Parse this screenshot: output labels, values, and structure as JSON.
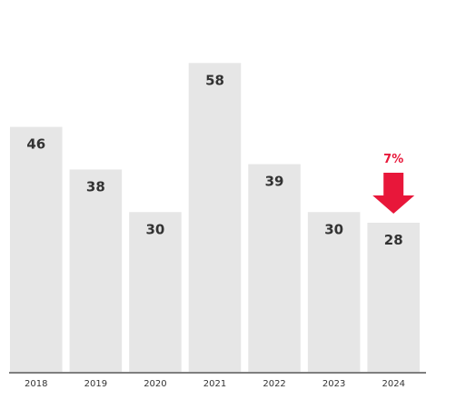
{
  "chart_data": {
    "type": "bar",
    "categories": [
      "2018",
      "2019",
      "2020",
      "2021",
      "2022",
      "2023",
      "2024"
    ],
    "values": [
      46,
      38,
      30,
      58,
      39,
      30,
      28
    ],
    "ylim": [
      0,
      63
    ],
    "grid": false,
    "annotation": {
      "text": "7%",
      "category": "2024",
      "direction": "down",
      "color": "#e8173a"
    },
    "bar_color": "#e6e6e6"
  }
}
